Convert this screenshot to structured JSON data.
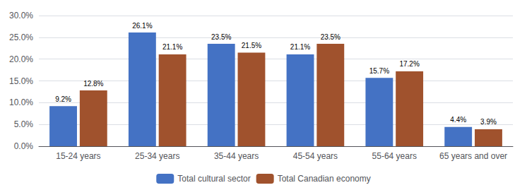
{
  "chart_data": {
    "type": "bar",
    "categories": [
      "15-24 years",
      "25-34 years",
      "35-44 years",
      "45-54 years",
      "55-64 years",
      "65 years and over"
    ],
    "series": [
      {
        "name": "Total cultural sector",
        "color": "#4472C4",
        "values": [
          9.2,
          26.1,
          23.5,
          21.1,
          15.7,
          4.4
        ],
        "value_labels": [
          "9.2%",
          "26.1%",
          "23.5%",
          "21.1%",
          "15.7%",
          "4.4%"
        ]
      },
      {
        "name": "Total Canadian economy",
        "color": "#A0522D",
        "values": [
          12.8,
          21.1,
          21.5,
          23.5,
          17.2,
          3.9
        ],
        "value_labels": [
          "12.8%",
          "21.1%",
          "21.5%",
          "23.5%",
          "17.2%",
          "3.9%"
        ]
      }
    ],
    "ylim": [
      0,
      30
    ],
    "yticks": [
      {
        "value": 0,
        "label": "0.0%"
      },
      {
        "value": 5,
        "label": "5.0%"
      },
      {
        "value": 10,
        "label": "10.0%"
      },
      {
        "value": 15,
        "label": "15.0%"
      },
      {
        "value": 20,
        "label": "20.0%"
      },
      {
        "value": 25,
        "label": "25.0%"
      },
      {
        "value": 30,
        "label": "30.0%"
      }
    ],
    "grid": true,
    "legend": "bottom",
    "data_labels": true
  }
}
